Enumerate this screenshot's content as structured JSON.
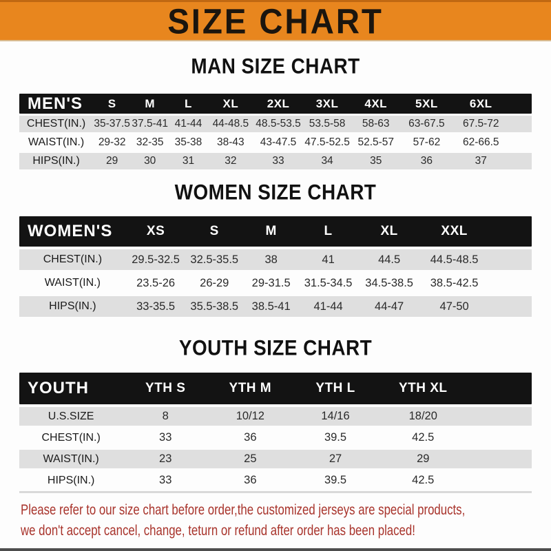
{
  "banner": {
    "title": "SIZE CHART"
  },
  "colors": {
    "banner_orange": "#e8861e",
    "header_bar_black": "#131313",
    "row_gray": "#dfdfdf",
    "footer_red": "#a8332b"
  },
  "men": {
    "heading": "MAN SIZE CHART",
    "header": "MEN'S",
    "cols": [
      "S",
      "M",
      "L",
      "XL",
      "2XL",
      "3XL",
      "4XL",
      "5XL",
      "6XL"
    ],
    "chest": {
      "label": "CHEST(IN.)",
      "v": [
        "35-37.5",
        "37.5-41",
        "41-44",
        "44-48.5",
        "48.5-53.5",
        "53.5-58",
        "58-63",
        "63-67.5",
        "67.5-72"
      ]
    },
    "waist": {
      "label": "WAIST(IN.)",
      "v": [
        "29-32",
        "32-35",
        "35-38",
        "38-43",
        "43-47.5",
        "47.5-52.5",
        "52.5-57",
        "57-62",
        "62-66.5"
      ]
    },
    "hips": {
      "label": "HIPS(IN.)",
      "v": [
        "29",
        "30",
        "31",
        "32",
        "33",
        "34",
        "35",
        "36",
        "37"
      ]
    }
  },
  "women": {
    "heading": "WOMEN SIZE CHART",
    "header": "WOMEN'S",
    "cols": [
      "XS",
      "S",
      "M",
      "L",
      "XL",
      "XXL"
    ],
    "chest": {
      "label": "CHEST(IN.)",
      "v": [
        "29.5-32.5",
        "32.5-35.5",
        "38",
        "41",
        "44.5",
        "44.5-48.5"
      ]
    },
    "waist": {
      "label": "WAIST(IN.)",
      "v": [
        "23.5-26",
        "26-29",
        "29-31.5",
        "31.5-34.5",
        "34.5-38.5",
        "38.5-42.5"
      ]
    },
    "hips": {
      "label": "HIPS(IN.)",
      "v": [
        "33-35.5",
        "35.5-38.5",
        "38.5-41",
        "41-44",
        "44-47",
        "47-50"
      ]
    }
  },
  "youth": {
    "heading": "YOUTH SIZE CHART",
    "header": "YOUTH",
    "cols": [
      "YTH S",
      "YTH M",
      "YTH L",
      "YTH XL"
    ],
    "ussize": {
      "label": "U.S.SIZE",
      "v": [
        "8",
        "10/12",
        "14/16",
        "18/20"
      ]
    },
    "chest": {
      "label": "CHEST(IN.)",
      "v": [
        "33",
        "36",
        "39.5",
        "42.5"
      ]
    },
    "waist": {
      "label": "WAIST(IN.)",
      "v": [
        "23",
        "25",
        "27",
        "29"
      ]
    },
    "hips": {
      "label": "HIPS(IN.)",
      "v": [
        "33",
        "36",
        "39.5",
        "42.5"
      ]
    }
  },
  "footer": {
    "line1": "Please refer to our size chart before order,the customized jerseys are special products,",
    "line2": "we don't accept cancel, change, teturn or refund after order has been placed!"
  }
}
